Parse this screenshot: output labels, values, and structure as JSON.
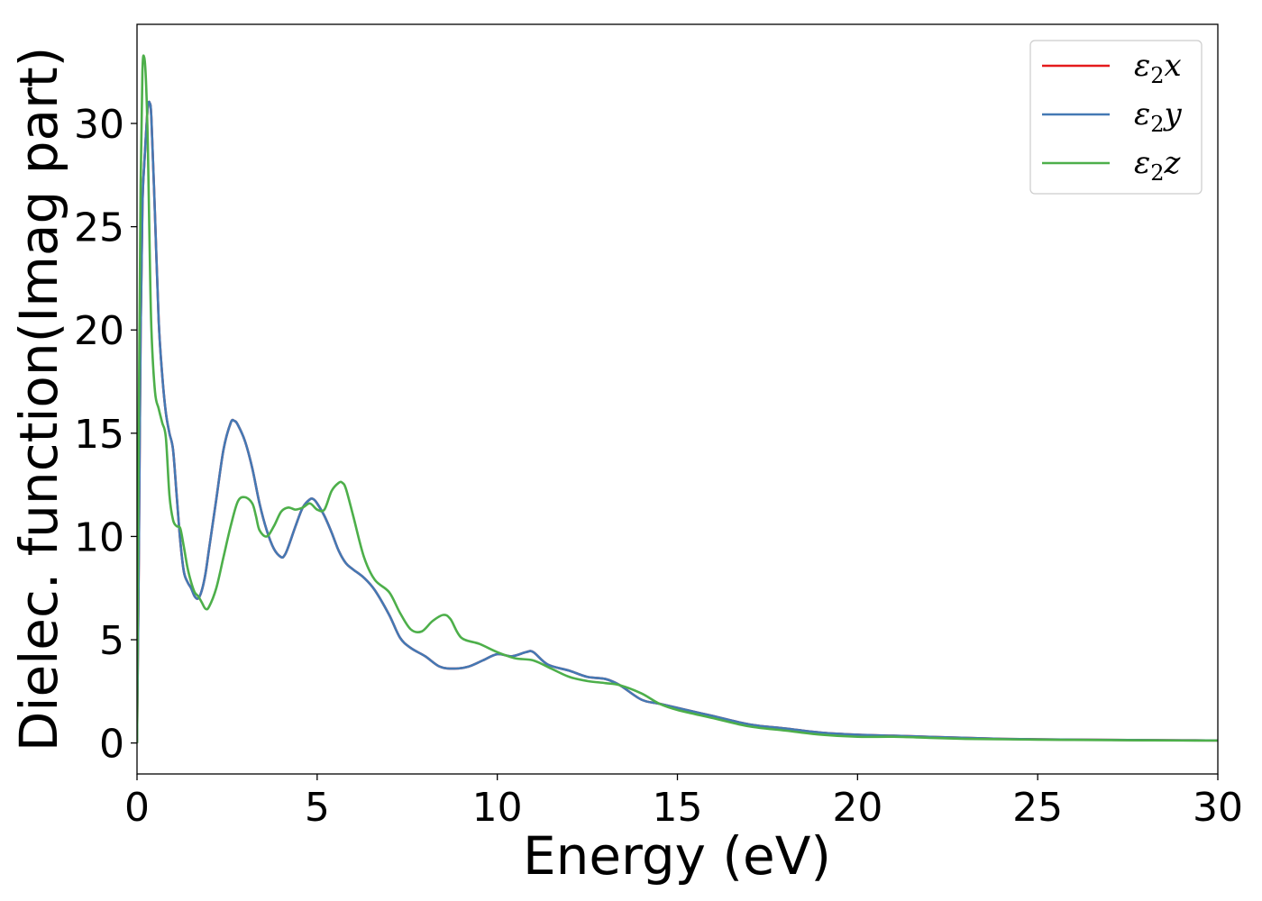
{
  "chart_data": {
    "type": "line",
    "title": "",
    "xlabel": "Energy (eV)",
    "ylabel": "Dielec. function(Imag part)",
    "xlim": [
      0,
      30
    ],
    "ylim": [
      -1.5,
      34.8
    ],
    "xticks": [
      0,
      5,
      10,
      15,
      20,
      25,
      30
    ],
    "yticks": [
      0,
      5,
      10,
      15,
      20,
      25,
      30
    ],
    "grid": false,
    "legend_position": "top-right",
    "series": [
      {
        "name": "ε₂x",
        "legend_base": "ε",
        "legend_sub": "2",
        "legend_tail": "x",
        "color": "#e41a1c",
        "x": [
          0,
          0.05,
          0.1,
          0.15,
          0.2,
          0.25,
          0.3,
          0.35,
          0.4,
          0.5,
          0.6,
          0.7,
          0.8,
          0.9,
          1.0,
          1.1,
          1.2,
          1.3,
          1.4,
          1.5,
          1.6,
          1.7,
          1.8,
          1.9,
          2.0,
          2.2,
          2.4,
          2.6,
          2.7,
          2.8,
          3.0,
          3.2,
          3.4,
          3.6,
          3.8,
          4.0,
          4.1,
          4.2,
          4.4,
          4.6,
          4.8,
          4.9,
          5.0,
          5.2,
          5.4,
          5.6,
          5.8,
          6.0,
          6.3,
          6.6,
          7.0,
          7.3,
          7.6,
          8.0,
          8.4,
          8.8,
          9.2,
          9.6,
          10.0,
          10.4,
          10.8,
          11.0,
          11.4,
          12.0,
          12.5,
          13.0,
          13.4,
          14.0,
          14.5,
          15.0,
          16.0,
          17.0,
          18.0,
          19.0,
          20.0,
          21.0,
          22.0,
          23.0,
          24.0,
          25.0,
          26.0,
          27.0,
          28.0,
          29.0,
          30.0
        ],
        "values": [
          0,
          9,
          20,
          26,
          28,
          29.5,
          30.8,
          31.0,
          30.2,
          25.5,
          20.5,
          17.8,
          16.0,
          15.0,
          14.2,
          12.0,
          9.8,
          8.3,
          7.8,
          7.5,
          7.1,
          7.0,
          7.4,
          8.2,
          9.4,
          11.8,
          14.2,
          15.5,
          15.6,
          15.4,
          14.6,
          13.3,
          11.6,
          10.3,
          9.4,
          9.0,
          9.1,
          9.5,
          10.5,
          11.4,
          11.8,
          11.8,
          11.6,
          11.0,
          10.2,
          9.3,
          8.7,
          8.4,
          8.0,
          7.4,
          6.2,
          5.1,
          4.6,
          4.2,
          3.7,
          3.6,
          3.7,
          4.0,
          4.3,
          4.2,
          4.4,
          4.4,
          3.8,
          3.5,
          3.2,
          3.1,
          2.8,
          2.1,
          1.9,
          1.7,
          1.3,
          0.9,
          0.7,
          0.5,
          0.4,
          0.35,
          0.3,
          0.25,
          0.2,
          0.18,
          0.16,
          0.15,
          0.14,
          0.13,
          0.12
        ]
      },
      {
        "name": "ε₂y",
        "legend_base": "ε",
        "legend_sub": "2",
        "legend_tail": "y",
        "color": "#4479b4",
        "x": [
          0,
          0.05,
          0.1,
          0.15,
          0.2,
          0.25,
          0.3,
          0.35,
          0.4,
          0.5,
          0.6,
          0.7,
          0.8,
          0.9,
          1.0,
          1.1,
          1.2,
          1.3,
          1.4,
          1.5,
          1.6,
          1.7,
          1.8,
          1.9,
          2.0,
          2.2,
          2.4,
          2.6,
          2.7,
          2.8,
          3.0,
          3.2,
          3.4,
          3.6,
          3.8,
          4.0,
          4.1,
          4.2,
          4.4,
          4.6,
          4.8,
          4.9,
          5.0,
          5.2,
          5.4,
          5.6,
          5.8,
          6.0,
          6.3,
          6.6,
          7.0,
          7.3,
          7.6,
          8.0,
          8.4,
          8.8,
          9.2,
          9.6,
          10.0,
          10.4,
          10.8,
          11.0,
          11.4,
          12.0,
          12.5,
          13.0,
          13.4,
          14.0,
          14.5,
          15.0,
          16.0,
          17.0,
          18.0,
          19.0,
          20.0,
          21.0,
          22.0,
          23.0,
          24.0,
          25.0,
          26.0,
          27.0,
          28.0,
          29.0,
          30.0
        ],
        "values": [
          0,
          9,
          20,
          26,
          28,
          29.5,
          30.8,
          31.0,
          30.2,
          25.5,
          20.5,
          17.8,
          16.0,
          15.0,
          14.2,
          12.0,
          9.8,
          8.3,
          7.8,
          7.5,
          7.1,
          7.0,
          7.4,
          8.2,
          9.4,
          11.8,
          14.2,
          15.5,
          15.6,
          15.4,
          14.6,
          13.3,
          11.6,
          10.3,
          9.4,
          9.0,
          9.1,
          9.5,
          10.5,
          11.4,
          11.8,
          11.8,
          11.6,
          11.0,
          10.2,
          9.3,
          8.7,
          8.4,
          8.0,
          7.4,
          6.2,
          5.1,
          4.6,
          4.2,
          3.7,
          3.6,
          3.7,
          4.0,
          4.3,
          4.2,
          4.4,
          4.4,
          3.8,
          3.5,
          3.2,
          3.1,
          2.8,
          2.1,
          1.9,
          1.7,
          1.3,
          0.9,
          0.7,
          0.5,
          0.4,
          0.35,
          0.3,
          0.25,
          0.2,
          0.18,
          0.16,
          0.15,
          0.14,
          0.13,
          0.12
        ]
      },
      {
        "name": "ε₂z",
        "legend_base": "ε",
        "legend_sub": "2",
        "legend_tail": "z",
        "color": "#4daf4a",
        "x": [
          0,
          0.05,
          0.1,
          0.15,
          0.2,
          0.25,
          0.3,
          0.35,
          0.4,
          0.5,
          0.6,
          0.7,
          0.8,
          0.9,
          1.0,
          1.1,
          1.2,
          1.3,
          1.4,
          1.5,
          1.6,
          1.7,
          1.8,
          1.9,
          2.0,
          2.2,
          2.4,
          2.6,
          2.8,
          3.0,
          3.2,
          3.3,
          3.4,
          3.6,
          3.8,
          4.0,
          4.2,
          4.4,
          4.6,
          4.8,
          5.0,
          5.2,
          5.4,
          5.6,
          5.7,
          5.8,
          6.0,
          6.3,
          6.6,
          7.0,
          7.3,
          7.6,
          7.9,
          8.2,
          8.5,
          8.7,
          9.0,
          9.5,
          10.0,
          10.5,
          11.0,
          11.5,
          12.0,
          12.5,
          13.0,
          13.4,
          14.0,
          14.5,
          15.0,
          16.0,
          17.0,
          18.0,
          19.0,
          20.0,
          21.0,
          22.0,
          23.0,
          24.0,
          25.0,
          26.0,
          27.0,
          28.0,
          29.0,
          30.0
        ],
        "values": [
          0,
          16,
          27,
          32.5,
          33.2,
          32,
          29,
          24,
          20,
          17,
          16.2,
          15.5,
          14.8,
          12,
          10.8,
          10.5,
          10.4,
          9.5,
          8.5,
          7.8,
          7.3,
          7.1,
          6.8,
          6.5,
          6.6,
          7.5,
          9.0,
          10.5,
          11.7,
          11.9,
          11.6,
          11.0,
          10.3,
          10.0,
          10.5,
          11.2,
          11.4,
          11.3,
          11.4,
          11.6,
          11.3,
          11.3,
          12.2,
          12.6,
          12.6,
          12.3,
          11.0,
          9.0,
          7.9,
          7.3,
          6.3,
          5.5,
          5.4,
          5.9,
          6.2,
          6.0,
          5.1,
          4.8,
          4.4,
          4.1,
          4.0,
          3.6,
          3.2,
          3.0,
          2.9,
          2.8,
          2.4,
          1.9,
          1.6,
          1.2,
          0.8,
          0.6,
          0.4,
          0.3,
          0.3,
          0.25,
          0.2,
          0.18,
          0.16,
          0.15,
          0.14,
          0.13,
          0.12,
          0.12
        ]
      }
    ]
  }
}
